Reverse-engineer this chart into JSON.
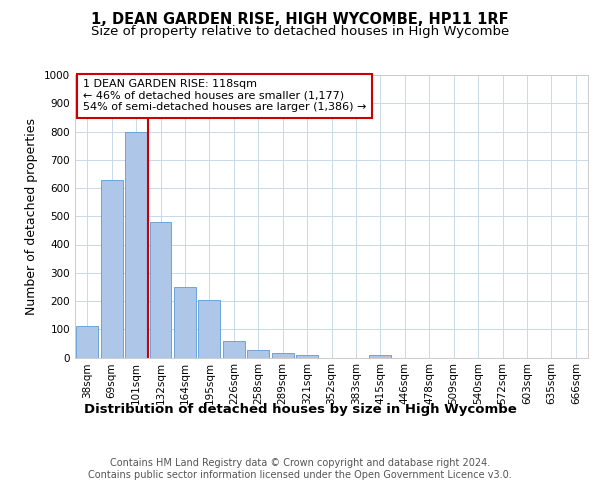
{
  "title": "1, DEAN GARDEN RISE, HIGH WYCOMBE, HP11 1RF",
  "subtitle": "Size of property relative to detached houses in High Wycombe",
  "xlabel": "Distribution of detached houses by size in High Wycombe",
  "ylabel": "Number of detached properties",
  "categories": [
    "38sqm",
    "69sqm",
    "101sqm",
    "132sqm",
    "164sqm",
    "195sqm",
    "226sqm",
    "258sqm",
    "289sqm",
    "321sqm",
    "352sqm",
    "383sqm",
    "415sqm",
    "446sqm",
    "478sqm",
    "509sqm",
    "540sqm",
    "572sqm",
    "603sqm",
    "635sqm",
    "666sqm"
  ],
  "values": [
    110,
    630,
    800,
    480,
    250,
    205,
    60,
    25,
    15,
    10,
    0,
    0,
    10,
    0,
    0,
    0,
    0,
    0,
    0,
    0,
    0
  ],
  "bar_color": "#aec6e8",
  "bar_edge_color": "#5b9bd5",
  "vline_x": 2.5,
  "annotation_line1": "1 DEAN GARDEN RISE: 118sqm",
  "annotation_line2": "← 46% of detached houses are smaller (1,177)",
  "annotation_line3": "54% of semi-detached houses are larger (1,386) →",
  "annotation_box_color": "#ffffff",
  "annotation_box_edge_color": "#cc0000",
  "vline_color": "#cc0000",
  "ylim": [
    0,
    1000
  ],
  "yticks": [
    0,
    100,
    200,
    300,
    400,
    500,
    600,
    700,
    800,
    900,
    1000
  ],
  "grid_color": "#c8d8e8",
  "background_color": "#ffffff",
  "footer_line1": "Contains HM Land Registry data © Crown copyright and database right 2024.",
  "footer_line2": "Contains public sector information licensed under the Open Government Licence v3.0.",
  "title_fontsize": 10.5,
  "subtitle_fontsize": 9.5,
  "xlabel_fontsize": 9.5,
  "ylabel_fontsize": 9,
  "tick_fontsize": 7.5,
  "annotation_fontsize": 8,
  "footer_fontsize": 7
}
